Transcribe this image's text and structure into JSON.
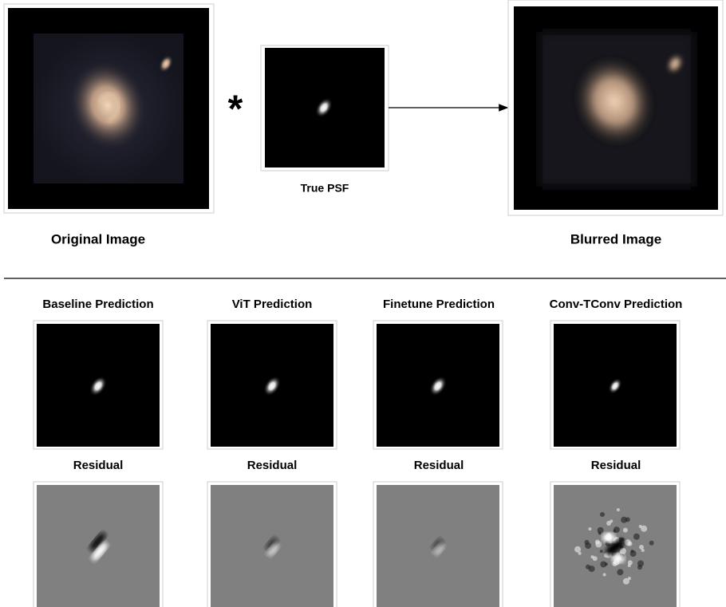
{
  "top": {
    "original_label": "Original Image",
    "operator": "*",
    "psf_label": "True PSF",
    "blurred_label": "Blurred Image"
  },
  "predictions": [
    {
      "title": "Baseline Prediction",
      "residual_label": "Residual"
    },
    {
      "title": "ViT Prediction",
      "residual_label": "Residual"
    },
    {
      "title": "Finetune Prediction",
      "residual_label": "Residual"
    },
    {
      "title": "Conv-TConv Prediction",
      "residual_label": "Residual"
    }
  ]
}
